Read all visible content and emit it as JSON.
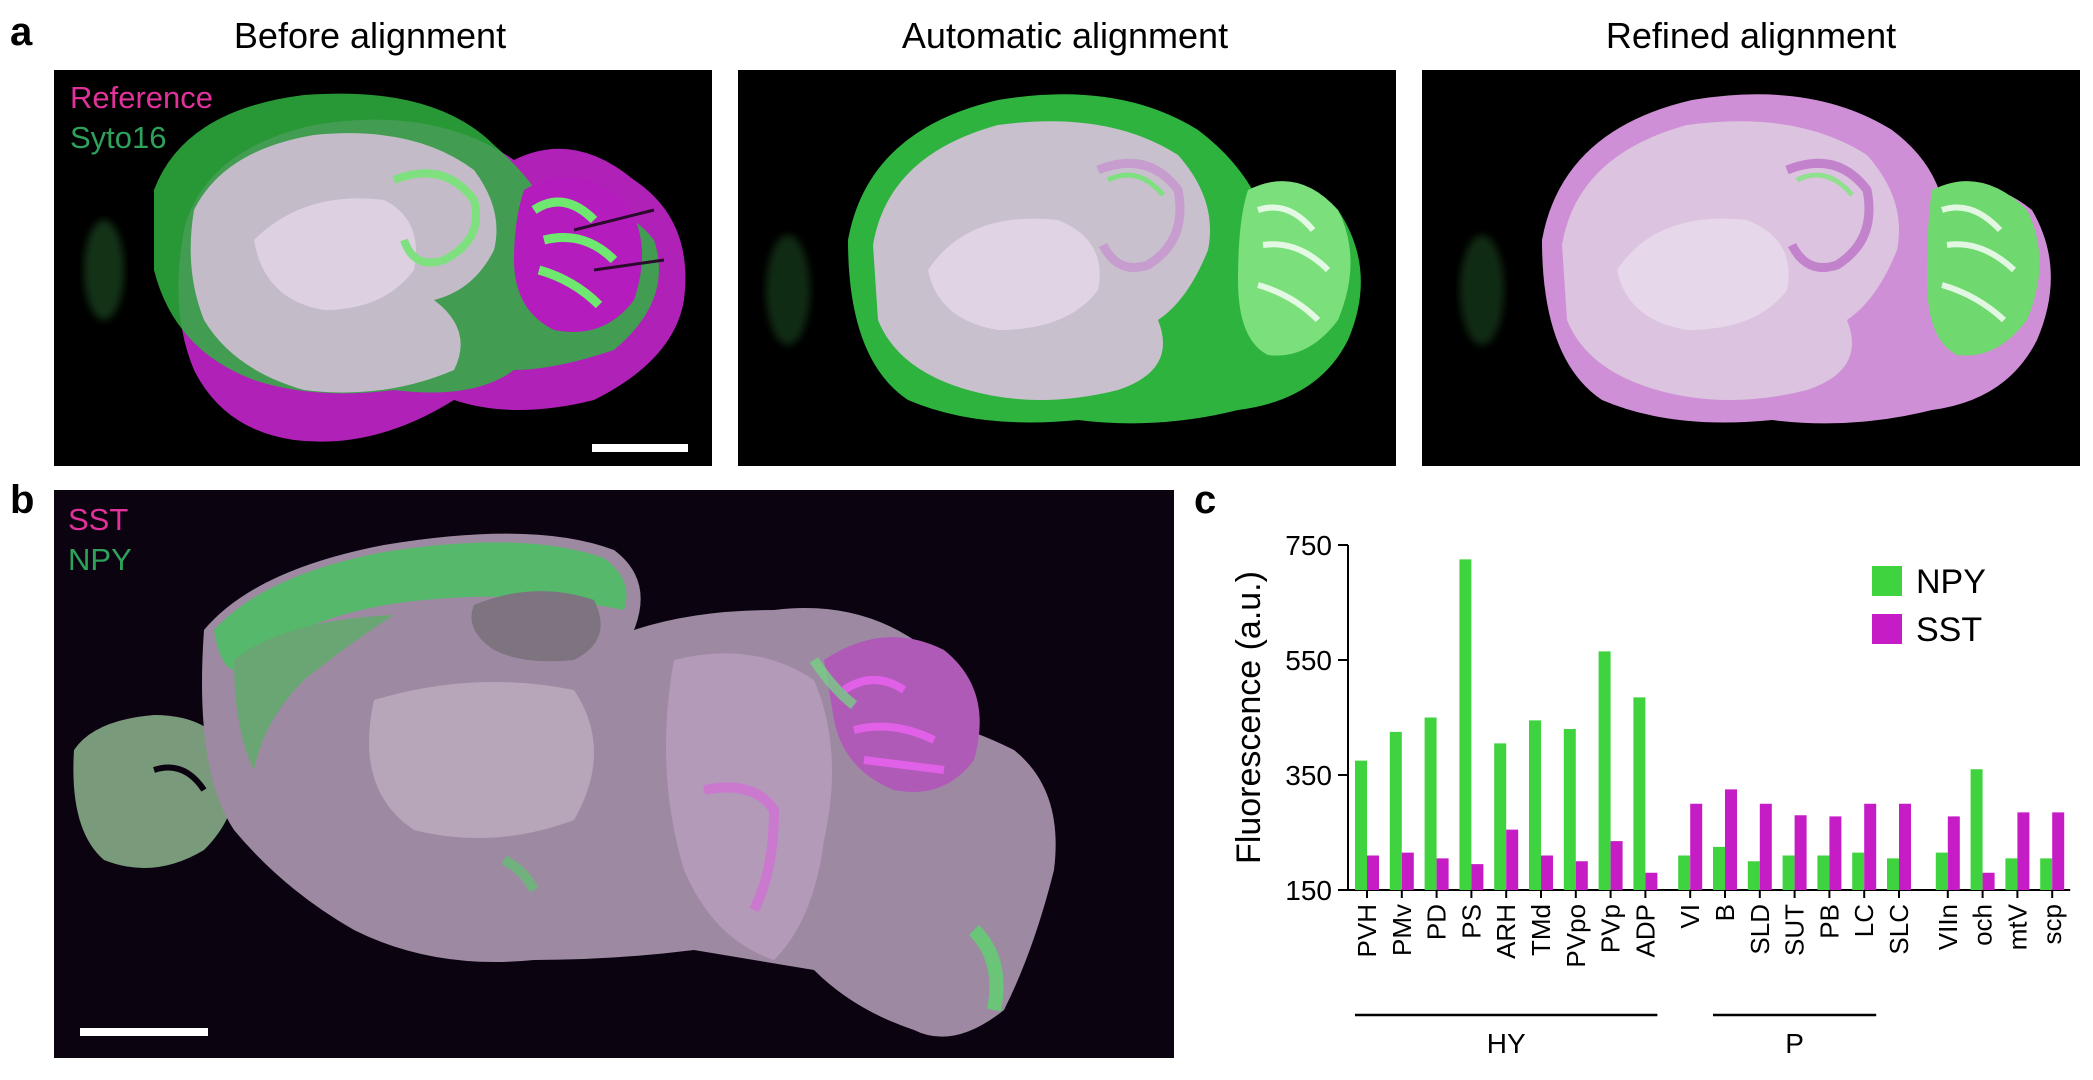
{
  "panel_a": {
    "letter": "a",
    "titles": [
      "Before alignment",
      "Automatic alignment",
      "Refined alignment"
    ],
    "legend": [
      {
        "label": "Reference",
        "color": "#e0329a"
      },
      {
        "label": "Syto16",
        "color": "#2ea15a"
      }
    ]
  },
  "panel_b": {
    "letter": "b",
    "legend": [
      {
        "label": "SST",
        "color": "#e0329a"
      },
      {
        "label": "NPY",
        "color": "#2ea15a"
      }
    ]
  },
  "panel_c": {
    "letter": "c"
  },
  "colors": {
    "npy": "#3fd33f",
    "sst": "#c61cc6",
    "brain_magenta": "#cc2fd0",
    "brain_green": "#3ed24a",
    "brain_pale": "#d9c2dd"
  },
  "chart_data": {
    "type": "bar",
    "ylabel": "Fluorescence (a.u.)",
    "ylim": [
      150,
      750
    ],
    "yticks": [
      150,
      350,
      550,
      750
    ],
    "categories": [
      "PVH",
      "PMv",
      "PD",
      "PS",
      "ARH",
      "TMd",
      "PVpo",
      "PVp",
      "ADP",
      "VI",
      "B",
      "SLD",
      "SUT",
      "PB",
      "LC",
      "SLC",
      "VIIn",
      "och",
      "mtV",
      "scp"
    ],
    "series": [
      {
        "name": "NPY",
        "color": "#3fd33f",
        "values": [
          375,
          425,
          450,
          725,
          405,
          445,
          430,
          565,
          485,
          210,
          225,
          200,
          210,
          210,
          215,
          205,
          215,
          360,
          205,
          205
        ]
      },
      {
        "name": "SST",
        "color": "#c61cc6",
        "values": [
          210,
          215,
          205,
          195,
          255,
          210,
          200,
          235,
          180,
          300,
          325,
          300,
          280,
          278,
          300,
          300,
          278,
          180,
          285,
          285
        ]
      }
    ],
    "groups": [
      {
        "label": "HY",
        "from": "PVH",
        "to": "ADP"
      },
      {
        "label": "P",
        "from": "B",
        "to": "LC"
      }
    ],
    "legend_position": "top-right"
  }
}
